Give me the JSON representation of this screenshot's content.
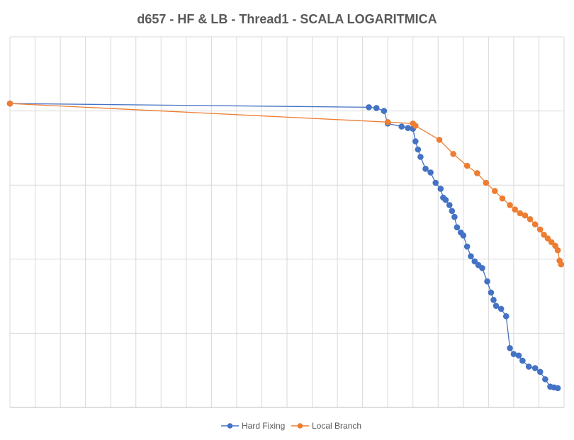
{
  "chart_data": {
    "type": "line",
    "title": "d657 - HF & LB - Thread1 - SCALA LOGARITMICA",
    "y_scale": "log",
    "y_decades": 5,
    "grid": true,
    "legend_position": "bottom",
    "x_axis": {
      "min": 0,
      "max": 22
    },
    "series": [
      {
        "name": "Hard Fixing",
        "color": "#4472C4",
        "points": [
          [
            0.0,
            -0.9
          ],
          [
            14.25,
            -0.95
          ],
          [
            14.55,
            -0.96
          ],
          [
            14.85,
            -1.0
          ],
          [
            15.0,
            -1.17
          ],
          [
            15.55,
            -1.21
          ],
          [
            15.8,
            -1.23
          ],
          [
            16.0,
            -1.24
          ],
          [
            16.1,
            -1.41
          ],
          [
            16.2,
            -1.52
          ],
          [
            16.3,
            -1.62
          ],
          [
            16.5,
            -1.78
          ],
          [
            16.7,
            -1.83
          ],
          [
            16.9,
            -1.97
          ],
          [
            17.1,
            -2.05
          ],
          [
            17.2,
            -2.17
          ],
          [
            17.3,
            -2.2
          ],
          [
            17.45,
            -2.27
          ],
          [
            17.55,
            -2.35
          ],
          [
            17.65,
            -2.43
          ],
          [
            17.75,
            -2.57
          ],
          [
            17.9,
            -2.64
          ],
          [
            18.0,
            -2.68
          ],
          [
            18.15,
            -2.83
          ],
          [
            18.3,
            -2.96
          ],
          [
            18.45,
            -3.03
          ],
          [
            18.6,
            -3.08
          ],
          [
            18.75,
            -3.12
          ],
          [
            18.95,
            -3.3
          ],
          [
            19.1,
            -3.45
          ],
          [
            19.2,
            -3.55
          ],
          [
            19.3,
            -3.63
          ],
          [
            19.5,
            -3.67
          ],
          [
            19.7,
            -3.77
          ],
          [
            19.85,
            -4.2
          ],
          [
            20.0,
            -4.28
          ],
          [
            20.2,
            -4.3
          ],
          [
            20.35,
            -4.37
          ],
          [
            20.6,
            -4.45
          ],
          [
            20.85,
            -4.47
          ],
          [
            21.05,
            -4.52
          ],
          [
            21.25,
            -4.62
          ],
          [
            21.45,
            -4.72
          ],
          [
            21.6,
            -4.73
          ],
          [
            21.75,
            -4.74
          ]
        ]
      },
      {
        "name": "Local Branch",
        "color": "#ED7D31",
        "points": [
          [
            0.0,
            -0.9
          ],
          [
            15.0,
            -1.15
          ],
          [
            16.0,
            -1.17
          ],
          [
            16.1,
            -1.2
          ],
          [
            17.05,
            -1.39
          ],
          [
            17.6,
            -1.58
          ],
          [
            18.15,
            -1.74
          ],
          [
            18.55,
            -1.84
          ],
          [
            18.9,
            -1.97
          ],
          [
            19.25,
            -2.08
          ],
          [
            19.55,
            -2.18
          ],
          [
            19.85,
            -2.27
          ],
          [
            20.05,
            -2.33
          ],
          [
            20.25,
            -2.38
          ],
          [
            20.45,
            -2.41
          ],
          [
            20.65,
            -2.46
          ],
          [
            20.85,
            -2.53
          ],
          [
            21.05,
            -2.6
          ],
          [
            21.2,
            -2.67
          ],
          [
            21.35,
            -2.72
          ],
          [
            21.5,
            -2.77
          ],
          [
            21.65,
            -2.82
          ],
          [
            21.75,
            -2.88
          ],
          [
            21.82,
            -3.02
          ],
          [
            21.88,
            -3.07
          ]
        ]
      }
    ]
  }
}
